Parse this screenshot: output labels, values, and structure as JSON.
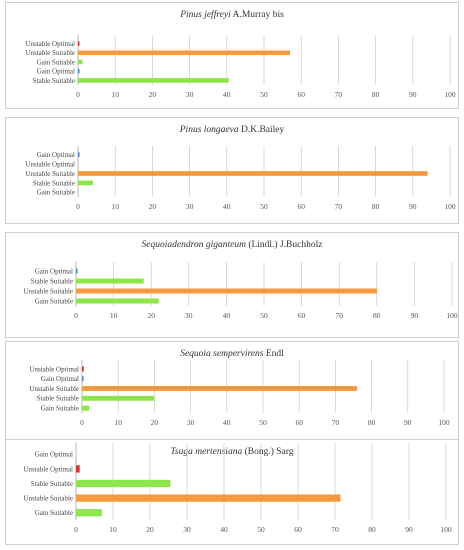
{
  "figure": {
    "colors": {
      "Stable Suitable": "#8ce64a",
      "Gain Suitable": "#8ce64a",
      "Unstable Suitable": "#f59a3f",
      "Gain Optimal": "#4a7fd6",
      "Unstable Optimal": "#e2312b",
      "gridline": "#c8c8c8",
      "axis": "#999999"
    }
  },
  "chart_data": [
    {
      "type": "bar",
      "orientation": "horizontal",
      "title_italic": "Pinus jeffreyi",
      "title_rest": " A.Murray bis",
      "categories": [
        "Unstable Optimal",
        "Unstable Suitable",
        "Gain Suitable",
        "Gain Optimal",
        "Stable Suitable"
      ],
      "values": [
        0.3,
        57,
        1.2,
        0.4,
        40.5
      ],
      "xlim": [
        0,
        100
      ],
      "xticks": [
        "0",
        "10",
        "20",
        "30",
        "40",
        "50",
        "60",
        "70",
        "80",
        "90",
        "100"
      ],
      "grid": true
    },
    {
      "type": "bar",
      "orientation": "horizontal",
      "title_italic": "Pinus longaeva",
      "title_rest": " D.K.Bailey",
      "categories": [
        "Gain Optimal",
        "Unstable Optimal",
        "Unstable Suitable",
        "Stable Suitable",
        "Gain Suitable"
      ],
      "values": [
        0.3,
        0,
        94,
        4,
        0
      ],
      "xlim": [
        0,
        100
      ],
      "xticks": [
        "0",
        "10",
        "20",
        "30",
        "40",
        "50",
        "60",
        "70",
        "80",
        "90",
        "100"
      ],
      "grid": true
    },
    {
      "type": "bar",
      "orientation": "horizontal",
      "title_italic": "Sequoiadendron giganteum",
      "title_rest": " (Lindl.) J.Buchholz",
      "categories": [
        "Gain Optimal",
        "Stable Suitable",
        "Unstable Suitable",
        "Gain Suitable"
      ],
      "values": [
        0.3,
        18,
        80,
        22
      ],
      "xlim": [
        0,
        100
      ],
      "xticks": [
        "0",
        "10",
        "20",
        "30",
        "40",
        "50",
        "60",
        "70",
        "80",
        "90",
        "100"
      ],
      "grid": true
    },
    {
      "type": "bar",
      "orientation": "horizontal",
      "title_italic": "Sequoia sempervirens",
      "title_rest": " Endl",
      "categories": [
        "Unstable Optimal",
        "Gain Optimal",
        "Unstable Suitable",
        "Stable Suitable",
        "Gain Suitable"
      ],
      "values": [
        0.5,
        0.2,
        76,
        20,
        2
      ],
      "xlim": [
        0,
        100
      ],
      "xticks": [
        "0",
        "10",
        "20",
        "30",
        "40",
        "50",
        "60",
        "70",
        "80",
        "90",
        "100"
      ],
      "grid": true
    },
    {
      "type": "bar",
      "orientation": "horizontal",
      "title_italic": "Tsuga mertensiana",
      "title_rest": " (Bong.) Sarg",
      "categories": [
        "Gain Optimal",
        "Unstable Optimal",
        "Stable Suitable",
        "Unstable Suitable",
        "Gain Suitable"
      ],
      "values": [
        0,
        1,
        25.5,
        71.5,
        7
      ],
      "xlim": [
        0,
        100
      ],
      "xticks": [
        "0",
        "10",
        "20",
        "30",
        "40",
        "50",
        "60",
        "70",
        "80",
        "90",
        "100"
      ],
      "grid": true
    }
  ]
}
